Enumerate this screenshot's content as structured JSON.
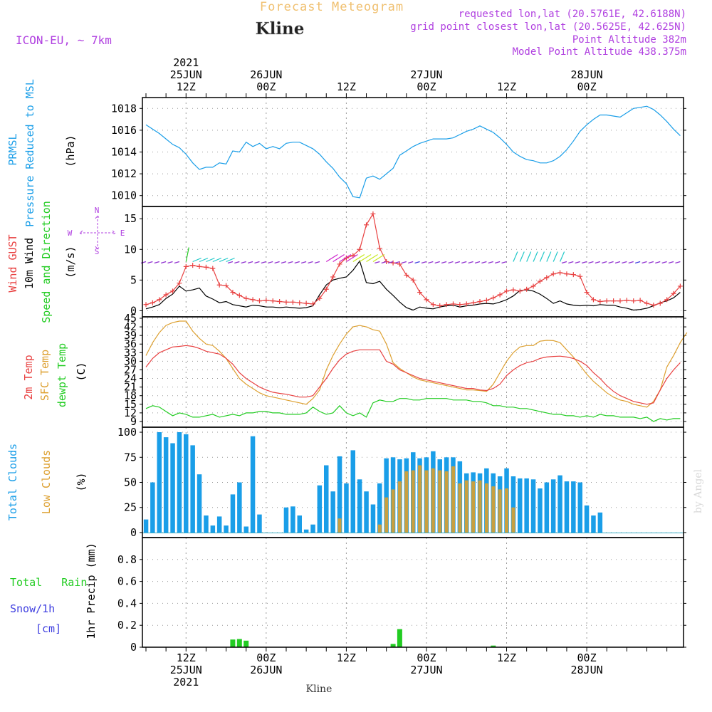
{
  "header": {
    "title": "Forecast Meteogram",
    "location": "Kline",
    "model": "ICON-EU, ~ 7km",
    "requested": "requested lon,lat (20.5761E, 42.6188N)",
    "grid_point": "grid point closest lon,lat (20.5625E, 42.625N)",
    "point_altitude": "Point Altitude 382m",
    "model_altitude": "Model Point Altitude 438.375m",
    "watermark": "by Angel",
    "footer_location": "Kline"
  },
  "colors": {
    "pressure": "#1a9ee8",
    "gust": "#e84040",
    "wind": "#000000",
    "direction": "#22cc22",
    "temp": "#e84040",
    "sfc": "#dda030",
    "dewpt": "#22cc22",
    "total_cloud": "#1a9ee8",
    "low_cloud": "#c8a040",
    "rain": "#22cc22",
    "snow": "#4040e0",
    "header_title": "#f0c070",
    "info": "#b040e0"
  },
  "chart_data": {
    "type": "meteogram",
    "time_axis": {
      "start": "2021-06-25T06Z",
      "end": "2021-06-28T12Z",
      "step_hours": 1,
      "top_labels": [
        {
          "hour": 6,
          "lines": [
            "2021",
            "25JUN",
            "12Z"
          ]
        },
        {
          "hour": 18,
          "lines": [
            "26JUN",
            "00Z"
          ]
        },
        {
          "hour": 30,
          "lines": [
            "12Z"
          ]
        },
        {
          "hour": 42,
          "lines": [
            "27JUN",
            "00Z"
          ]
        },
        {
          "hour": 54,
          "lines": [
            "12Z"
          ]
        },
        {
          "hour": 66,
          "lines": [
            "28JUN",
            "00Z"
          ]
        }
      ],
      "bottom_labels": [
        {
          "hour": 6,
          "lines": [
            "12Z",
            "25JUN",
            "2021"
          ]
        },
        {
          "hour": 18,
          "lines": [
            "00Z",
            "26JUN"
          ]
        },
        {
          "hour": 30,
          "lines": [
            "12Z"
          ]
        },
        {
          "hour": 42,
          "lines": [
            "00Z",
            "27JUN"
          ]
        },
        {
          "hour": 54,
          "lines": [
            "12Z"
          ]
        },
        {
          "hour": 66,
          "lines": [
            "00Z",
            "28JUN"
          ]
        }
      ]
    },
    "panels": [
      {
        "id": "pressure",
        "labels": [
          "PRMSL",
          "Pressure Reduced to MSL",
          "(hPa)"
        ],
        "ylim": [
          1009,
          1019
        ],
        "yticks": [
          1010,
          1012,
          1014,
          1016,
          1018
        ],
        "series": [
          {
            "id": "prmsl",
            "values": [
              1016.5,
              1016.1,
              1015.7,
              1015.2,
              1014.7,
              1014.4,
              1013.8,
              1013.0,
              1012.4,
              1012.6,
              1012.6,
              1013.0,
              1012.9,
              1014.1,
              1014.0,
              1014.9,
              1014.5,
              1014.8,
              1014.3,
              1014.5,
              1014.3,
              1014.8,
              1014.9,
              1014.9,
              1014.6,
              1014.3,
              1013.8,
              1013.1,
              1012.5,
              1011.7,
              1011.1,
              1009.9,
              1009.8,
              1011.6,
              1011.8,
              1011.5,
              1012.0,
              1012.5,
              1013.7,
              1014.1,
              1014.5,
              1014.8,
              1015.0,
              1015.2,
              1015.2,
              1015.2,
              1015.3,
              1015.6,
              1015.9,
              1016.1,
              1016.4,
              1016.1,
              1015.8,
              1015.3,
              1014.7,
              1014.0,
              1013.6,
              1013.3,
              1013.2,
              1013.0,
              1013.0,
              1013.2,
              1013.6,
              1014.2,
              1015.0,
              1015.9,
              1016.5,
              1017.0,
              1017.4,
              1017.4,
              1017.3,
              1017.2,
              1017.6,
              1018.0,
              1018.1,
              1018.2,
              1017.9,
              1017.4,
              1016.8,
              1016.1,
              1015.5
            ]
          }
        ]
      },
      {
        "id": "wind",
        "labels": [
          "Wind GUST",
          "10m Wind",
          "Speed and Direction",
          "(m/s)"
        ],
        "compass": {
          "n": "N",
          "s": "S",
          "w": "W",
          "e": "E"
        },
        "ylim": [
          -1,
          17
        ],
        "yticks": [
          0,
          5,
          10,
          15
        ],
        "series": [
          {
            "id": "gust",
            "name": "Wind GUST",
            "values": [
              1.0,
              1.3,
              1.8,
              2.6,
              3.2,
              4.5,
              7.2,
              7.4,
              7.2,
              7.1,
              6.9,
              4.2,
              4.1,
              3.0,
              2.5,
              2.0,
              1.8,
              1.6,
              1.7,
              1.6,
              1.5,
              1.4,
              1.4,
              1.3,
              1.2,
              1.1,
              2.0,
              3.5,
              5.5,
              7.6,
              8.6,
              9.0,
              10.0,
              14.0,
              15.8,
              10.2,
              8.0,
              7.8,
              7.6,
              5.8,
              5.0,
              3.0,
              1.8,
              1.0,
              0.8,
              1.0,
              1.1,
              1.0,
              1.1,
              1.3,
              1.5,
              1.7,
              2.1,
              2.6,
              3.2,
              3.4,
              3.2,
              3.5,
              4.0,
              4.8,
              5.4,
              6.0,
              6.2,
              6.0,
              5.9,
              5.6,
              3.0,
              1.8,
              1.5,
              1.6,
              1.6,
              1.6,
              1.7,
              1.6,
              1.7,
              1.2,
              0.9,
              1.2,
              1.8,
              2.8,
              4.0
            ]
          },
          {
            "id": "wind10",
            "name": "10m Wind",
            "values": [
              0.3,
              0.6,
              1.0,
              2.0,
              2.7,
              4.0,
              3.2,
              3.4,
              3.7,
              2.4,
              1.9,
              1.3,
              1.5,
              1.0,
              0.8,
              0.6,
              0.9,
              0.8,
              0.6,
              0.6,
              0.5,
              0.6,
              0.5,
              0.4,
              0.5,
              0.8,
              2.6,
              4.2,
              5.0,
              5.3,
              5.5,
              6.6,
              8.1,
              4.6,
              4.4,
              4.8,
              3.5,
              2.5,
              1.4,
              0.5,
              0.1,
              0.6,
              0.4,
              0.3,
              0.6,
              0.8,
              0.9,
              0.6,
              0.8,
              0.9,
              1.1,
              1.2,
              1.1,
              1.4,
              1.8,
              2.4,
              3.3,
              3.4,
              3.2,
              2.7,
              2.0,
              1.2,
              1.6,
              1.1,
              0.9,
              0.8,
              0.9,
              0.8,
              1.0,
              0.9,
              0.9,
              0.6,
              0.4,
              0.1,
              0.2,
              0.4,
              0.8,
              1.3,
              1.6,
              2.1,
              3.0
            ]
          }
        ]
      },
      {
        "id": "temp",
        "labels": [
          "2m Temp",
          "SFC Temp",
          "dewpt Temp",
          "(C)"
        ],
        "ylim": [
          7,
          45.5
        ],
        "yticks": [
          9,
          12,
          15,
          18,
          21,
          24,
          27,
          30,
          33,
          36,
          39,
          42,
          45
        ],
        "series": [
          {
            "id": "t2m",
            "name": "2m Temp",
            "values": [
              28,
              31,
              33,
              34,
              35,
              35.2,
              35.5,
              35.2,
              34.5,
              33.5,
              33,
              32.5,
              31,
              29,
              26,
              24,
              22.5,
              21,
              20,
              19.2,
              18.8,
              18.5,
              18,
              17.5,
              17.5,
              18,
              21,
              24,
              27.5,
              30.5,
              32.5,
              33.5,
              34,
              34,
              34,
              34,
              30,
              29,
              27,
              26,
              25,
              24,
              23.5,
              23,
              22.5,
              22,
              21.5,
              21,
              20.5,
              20.5,
              20,
              19.8,
              20.5,
              22,
              25,
              27,
              28.5,
              29.5,
              30,
              31,
              31.5,
              31.7,
              31.8,
              31.5,
              31,
              30,
              28.5,
              26,
              24,
              21.5,
              19.5,
              18,
              17,
              16,
              15.5,
              15,
              15.5,
              20,
              24,
              27,
              29.5
            ]
          },
          {
            "id": "sfc",
            "name": "SFC Temp",
            "values": [
              32,
              36.5,
              40,
              42.5,
              43.5,
              44,
              44,
              40.5,
              38,
              36,
              35.5,
              33.5,
              31,
              27.5,
              24,
              22,
              20.5,
              19,
              18,
              17.5,
              17,
              16.5,
              16,
              15.5,
              15,
              17,
              20,
              27,
              32,
              36,
              39.5,
              42,
              42.5,
              42,
              41,
              40.5,
              36,
              29.5,
              27.5,
              26,
              24.5,
              23.5,
              23,
              22.5,
              22,
              21.5,
              21,
              20.5,
              20,
              20,
              19.8,
              19.5,
              22,
              26,
              30,
              33,
              35,
              35.5,
              35.5,
              37,
              37.3,
              37.2,
              36.5,
              34,
              31.5,
              28.5,
              25.5,
              23,
              21,
              19,
              17.5,
              16.5,
              16,
              15,
              14.5,
              14,
              16,
              20,
              28,
              32,
              36.5,
              40
            ]
          },
          {
            "id": "dewpt",
            "name": "dewpt Temp",
            "values": [
              13.5,
              14.5,
              14,
              12.5,
              11,
              12,
              11.5,
              10.5,
              10.5,
              11,
              11.5,
              10.5,
              11,
              11.5,
              11,
              12,
              12,
              12.5,
              12.5,
              12,
              12,
              11.5,
              11.5,
              11.5,
              12,
              14,
              12.5,
              11.5,
              12,
              14.5,
              12,
              11,
              12,
              10.5,
              15.5,
              16.5,
              16,
              16,
              17,
              17,
              16.5,
              16.5,
              17,
              17,
              17,
              17,
              16.5,
              16.5,
              16.5,
              16,
              16,
              15.5,
              14.5,
              14.5,
              14,
              14,
              13.5,
              13.5,
              13,
              12.5,
              12,
              11.5,
              11.5,
              11,
              11,
              10.5,
              11,
              10.5,
              11.5,
              11,
              11,
              10.5,
              10.5,
              10.5,
              10,
              10.5,
              9,
              10,
              9.5,
              10,
              10
            ]
          }
        ]
      },
      {
        "id": "clouds",
        "labels": [
          "Total Clouds",
          "Low Clouds",
          "(%)"
        ],
        "ylim": [
          -5,
          105
        ],
        "yticks": [
          0,
          25,
          50,
          75,
          100
        ],
        "series": [
          {
            "id": "total_cloud",
            "name": "Total Clouds",
            "values": [
              13,
              50,
              100,
              95,
              89,
              100,
              98,
              87,
              58,
              17,
              7,
              16,
              7,
              38,
              50,
              6,
              96,
              18,
              0,
              0,
              0,
              25,
              26,
              17,
              3,
              8,
              47,
              67,
              41,
              76,
              49,
              82,
              53,
              41,
              28,
              49,
              74,
              75,
              73,
              74,
              80,
              74,
              75,
              81,
              73,
              75,
              75,
              71,
              59,
              60,
              59,
              64,
              59,
              56,
              64,
              56,
              54,
              54,
              53,
              44,
              50,
              53,
              57,
              51,
              51,
              50,
              27,
              17,
              20,
              0,
              0,
              0,
              0,
              0,
              0,
              0,
              0,
              0,
              0,
              0,
              0
            ]
          },
          {
            "id": "low_cloud",
            "name": "Low Clouds",
            "values": [
              0,
              0,
              0,
              0,
              0,
              0,
              0,
              0,
              0,
              0,
              0,
              0,
              0,
              0,
              0,
              0,
              0,
              0,
              0,
              0,
              0,
              0,
              0,
              0,
              0,
              0,
              0,
              0,
              0,
              14,
              0,
              0,
              0,
              0,
              0,
              8,
              35,
              43,
              51,
              61,
              62,
              67,
              62,
              64,
              62,
              61,
              66,
              49,
              52,
              51,
              52,
              49,
              46,
              43,
              44,
              25,
              0,
              0,
              0,
              0,
              0,
              0,
              0,
              0,
              0,
              0,
              0,
              0,
              0,
              0,
              0,
              0,
              0,
              0,
              0,
              0,
              0,
              0,
              0,
              0,
              0
            ]
          }
        ]
      },
      {
        "id": "precip",
        "labels": [
          "Total Rain",
          "Snow/1h",
          "[cm]",
          "1hr Precip (mm)"
        ],
        "ylim": [
          0,
          1.0
        ],
        "yticks": [
          0,
          0.2,
          0.4,
          0.6,
          0.8
        ],
        "tick_format": [
          "0",
          "0.2",
          "0.4",
          "0.6",
          "0.8"
        ],
        "series": [
          {
            "id": "rain",
            "name": "Total Rain",
            "bars": [
              {
                "hour": 13,
                "value": 0.07
              },
              {
                "hour": 14,
                "value": 0.075
              },
              {
                "hour": 15,
                "value": 0.06
              },
              {
                "hour": 37,
                "value": 0.03
              },
              {
                "hour": 38,
                "value": 0.165
              },
              {
                "hour": 52,
                "value": 0.015
              }
            ]
          }
        ]
      }
    ]
  }
}
